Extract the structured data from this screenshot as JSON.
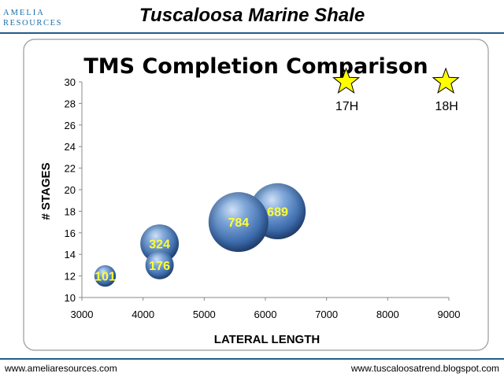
{
  "header": {
    "logo_line1": "AMELIA",
    "logo_line2": "RESOURCES",
    "title": "Tuscaloosa Marine Shale"
  },
  "footer": {
    "left": "www.ameliaresources.com",
    "right": "www.tuscaloosatrend.blogspot.com"
  },
  "colors": {
    "brand": "#1a6fa8",
    "bubble": "#3f74b8",
    "star_fill": "#ffff00",
    "bubble_label": "#ffff33"
  },
  "chart_data": {
    "type": "scatter",
    "title": "TMS Completion Comparison",
    "xlabel": "LATERAL LENGTH",
    "ylabel": "# STAGES",
    "xlim": [
      3000,
      9000
    ],
    "ylim": [
      10,
      30
    ],
    "xticks": [
      3000,
      4000,
      5000,
      6000,
      7000,
      8000,
      9000
    ],
    "yticks": [
      10,
      12,
      14,
      16,
      18,
      20,
      22,
      24,
      26,
      28,
      30
    ],
    "grid": false,
    "bubbles": [
      {
        "x": 3380,
        "y": 12,
        "size": 101,
        "label": "101"
      },
      {
        "x": 4270,
        "y": 13,
        "size": 176,
        "label": "176"
      },
      {
        "x": 4270,
        "y": 15,
        "size": 324,
        "label": "324"
      },
      {
        "x": 5560,
        "y": 17,
        "size": 784,
        "label": "784"
      },
      {
        "x": 6200,
        "y": 18,
        "size": 689,
        "label": "689"
      }
    ],
    "stars": [
      {
        "x": 7320,
        "y": 30,
        "label": "17H"
      },
      {
        "x": 8950,
        "y": 30,
        "label": "18H"
      }
    ]
  }
}
